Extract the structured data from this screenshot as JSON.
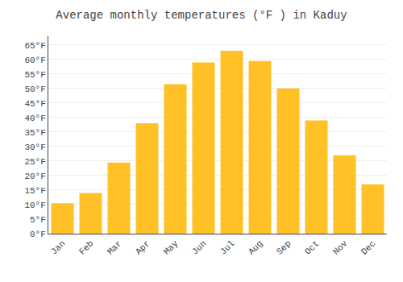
{
  "chart_data": {
    "type": "bar",
    "title": "Average monthly temperatures (°F ) in Kaduy",
    "categories": [
      "Jan",
      "Feb",
      "Mar",
      "Apr",
      "May",
      "Jun",
      "Jul",
      "Aug",
      "Sep",
      "Oct",
      "Nov",
      "Dec"
    ],
    "values": [
      10.5,
      14.0,
      24.5,
      38.0,
      51.5,
      59.0,
      63.0,
      59.5,
      50.0,
      39.0,
      27.0,
      17.0
    ],
    "color": "#FFC125",
    "ylim": [
      0,
      68
    ],
    "yticks": [
      {
        "value": 0,
        "label": "0°F"
      },
      {
        "value": 5,
        "label": "5°F"
      },
      {
        "value": 10,
        "label": "10°F"
      },
      {
        "value": 15,
        "label": "15°F"
      },
      {
        "value": 20,
        "label": "20°F"
      },
      {
        "value": 25,
        "label": "25°F"
      },
      {
        "value": 30,
        "label": "30°F"
      },
      {
        "value": 35,
        "label": "35°F"
      },
      {
        "value": 40,
        "label": "40°F"
      },
      {
        "value": 45,
        "label": "45°F"
      },
      {
        "value": 50,
        "label": "50°F"
      },
      {
        "value": 55,
        "label": "55°F"
      },
      {
        "value": 60,
        "label": "60°F"
      },
      {
        "value": 65,
        "label": "65°F"
      }
    ],
    "grid": true
  }
}
